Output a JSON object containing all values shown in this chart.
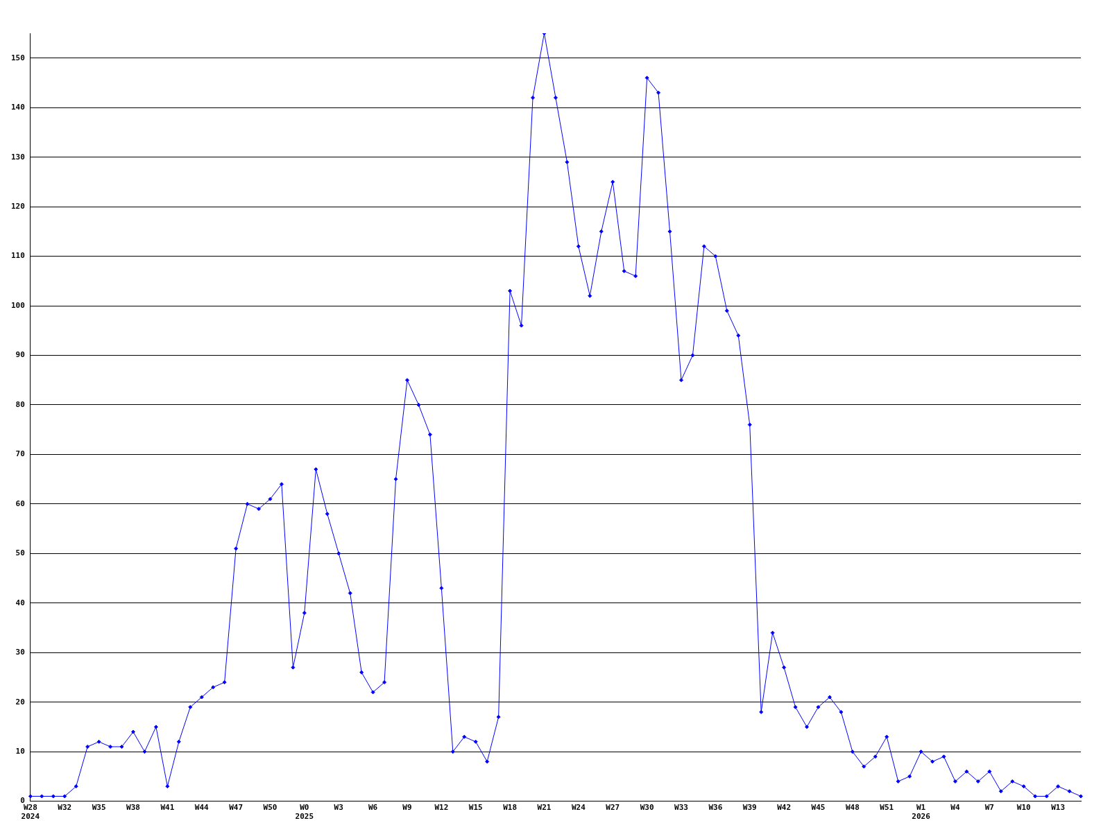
{
  "chart_data": {
    "type": "line",
    "categories": [
      "W28\n2024",
      null,
      null,
      "W32",
      null,
      null,
      "W35",
      null,
      null,
      "W38",
      null,
      null,
      "W41",
      null,
      null,
      "W44",
      null,
      null,
      "W47",
      null,
      null,
      "W50",
      null,
      null,
      "W0\n2025",
      null,
      null,
      "W3",
      null,
      null,
      "W6",
      null,
      null,
      "W9",
      null,
      null,
      "W12",
      null,
      null,
      "W15",
      null,
      null,
      "W18",
      null,
      null,
      "W21",
      null,
      null,
      "W24",
      null,
      null,
      "W27",
      null,
      null,
      "W30",
      null,
      null,
      "W33",
      null,
      null,
      "W36",
      null,
      null,
      "W39",
      null,
      null,
      "W42",
      null,
      null,
      "W45",
      null,
      null,
      "W48",
      null,
      null,
      "W51",
      null,
      null,
      "W1\n2026",
      null,
      null,
      "W4",
      null,
      null,
      "W7",
      null,
      null,
      "W10",
      null,
      null,
      "W13",
      null,
      null
    ],
    "series": [
      {
        "color": "#0000ff",
        "values": [
          1,
          1,
          1,
          1,
          3,
          11,
          12,
          11,
          11,
          14,
          10,
          15,
          3,
          12,
          19,
          21,
          23,
          24,
          51,
          60,
          59,
          61,
          64,
          27,
          38,
          67,
          58,
          50,
          42,
          26,
          22,
          24,
          65,
          85,
          80,
          74,
          43,
          10,
          13,
          12,
          8,
          17,
          103,
          96,
          142,
          155,
          142,
          129,
          112,
          102,
          115,
          125,
          107,
          106,
          146,
          143,
          115,
          85,
          90,
          112,
          110,
          99,
          94,
          76,
          18,
          34,
          27,
          19,
          15,
          19,
          21,
          18,
          10,
          7,
          9,
          13,
          4,
          5,
          10,
          8,
          9,
          4,
          6,
          4,
          6,
          2,
          4,
          3,
          1,
          1,
          3,
          2,
          1
        ]
      }
    ],
    "ylim": [
      0,
      155
    ],
    "yticks": [
      0,
      10,
      20,
      30,
      40,
      50,
      60,
      70,
      80,
      90,
      100,
      110,
      120,
      130,
      140,
      150
    ],
    "grid": "y",
    "legend": false,
    "marker": "diamond",
    "line_style": "solid"
  }
}
